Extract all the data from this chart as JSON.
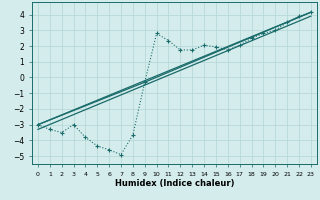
{
  "xlabel": "Humidex (Indice chaleur)",
  "bg_color": "#d4ecec",
  "grid_color": "#b8d8d8",
  "line_color": "#1a6b6b",
  "xlim": [
    -0.5,
    23.5
  ],
  "ylim": [
    -5.5,
    4.8
  ],
  "yticks": [
    -5,
    -4,
    -3,
    -2,
    -1,
    0,
    1,
    2,
    3,
    4
  ],
  "xticks": [
    0,
    1,
    2,
    3,
    4,
    5,
    6,
    7,
    8,
    9,
    10,
    11,
    12,
    13,
    14,
    15,
    16,
    17,
    18,
    19,
    20,
    21,
    22,
    23
  ],
  "line1_x": [
    0,
    1,
    2,
    3,
    4,
    5,
    6,
    7,
    8,
    9,
    10,
    11,
    12,
    13,
    14,
    15,
    16,
    17,
    18,
    19,
    20,
    21,
    22,
    23
  ],
  "line1_y": [
    -3.0,
    -3.3,
    -3.5,
    -3.0,
    -3.8,
    -4.35,
    -4.6,
    -4.9,
    -3.65,
    -0.3,
    2.8,
    2.35,
    1.75,
    1.75,
    2.05,
    1.95,
    1.75,
    2.05,
    2.5,
    2.8,
    3.0,
    3.5,
    3.9,
    4.15
  ],
  "line2_x": [
    0,
    23
  ],
  "line2_y": [
    -3.0,
    4.15
  ],
  "line3_x": [
    0,
    9,
    23
  ],
  "line3_y": [
    -3.0,
    -0.3,
    4.15
  ],
  "line4_x": [
    0,
    23
  ],
  "line4_y": [
    -3.3,
    3.9
  ]
}
